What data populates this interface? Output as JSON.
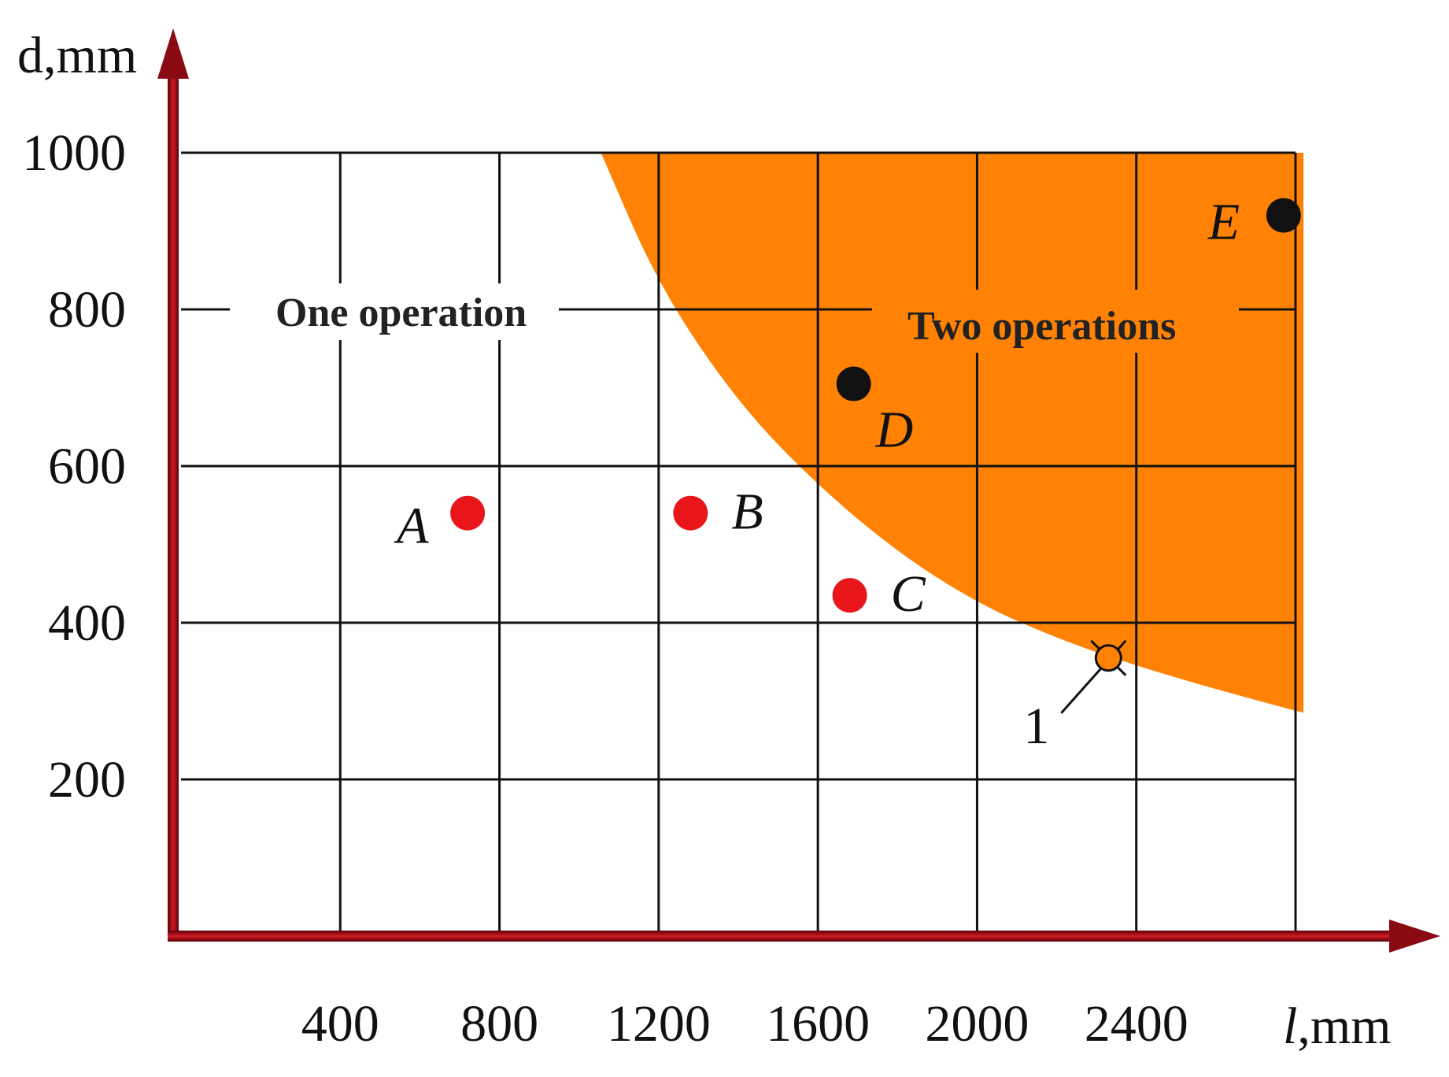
{
  "chart_data": {
    "type": "scatter",
    "xlabel_italic": "l",
    "xlabel_rest": ",mm",
    "ylabel": "d,mm",
    "xlim": [
      0,
      2800
    ],
    "ylim": [
      0,
      1000
    ],
    "x_ticks": [
      400,
      800,
      1200,
      1600,
      2000,
      2400
    ],
    "y_ticks": [
      200,
      400,
      600,
      800,
      1000
    ],
    "grid": true,
    "regions": [
      {
        "name": "One operation",
        "color": "#ffffff"
      },
      {
        "name": "Two operations",
        "color": "#ff8205"
      }
    ],
    "boundary_curve": [
      {
        "x": 1055,
        "y": 1000
      },
      {
        "x": 1200,
        "y": 830
      },
      {
        "x": 1400,
        "y": 680
      },
      {
        "x": 1600,
        "y": 575
      },
      {
        "x": 1800,
        "y": 490
      },
      {
        "x": 2000,
        "y": 425
      },
      {
        "x": 2200,
        "y": 380
      },
      {
        "x": 2400,
        "y": 345
      },
      {
        "x": 2600,
        "y": 315
      },
      {
        "x": 2820,
        "y": 285
      }
    ],
    "points": [
      {
        "label": "A",
        "x": 720,
        "y": 540,
        "color": "#e8161b"
      },
      {
        "label": "B",
        "x": 1280,
        "y": 540,
        "color": "#e8161b"
      },
      {
        "label": "C",
        "x": 1680,
        "y": 435,
        "color": "#e8161b"
      },
      {
        "label": "D",
        "x": 1690,
        "y": 705,
        "color": "#111111"
      },
      {
        "label": "E",
        "x": 2770,
        "y": 920,
        "color": "#111111"
      }
    ],
    "annotation": {
      "label": "1",
      "x": 2330,
      "y": 355
    }
  }
}
